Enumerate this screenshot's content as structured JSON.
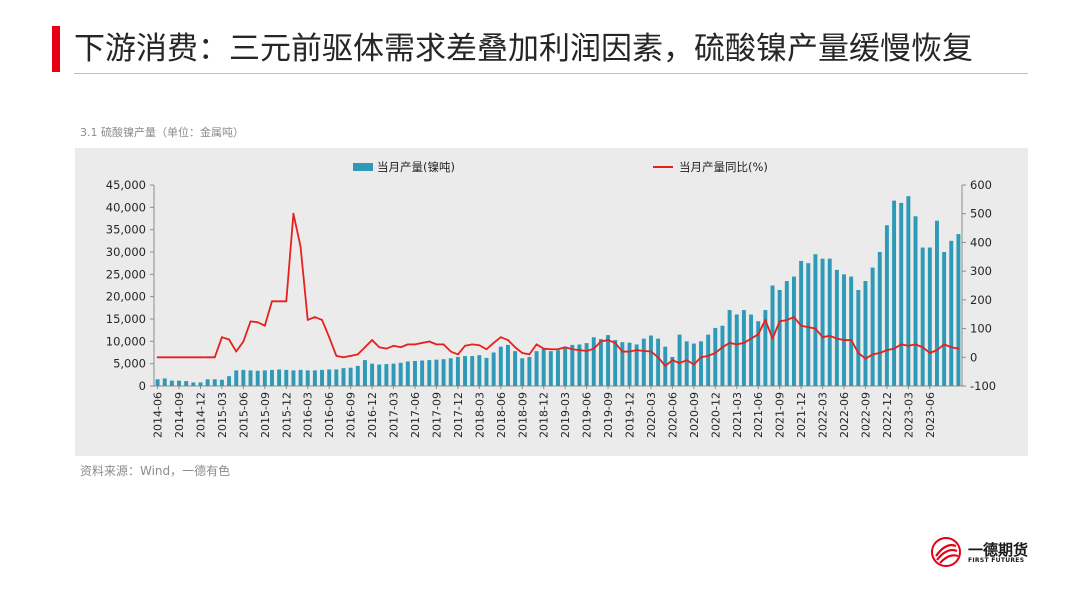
{
  "header": {
    "title": "下游消费：三元前驱体需求差叠加利润因素，硫酸镍产量缓慢恢复",
    "accent_color": "#e60012"
  },
  "chart_label": "3.1 硫酸镍产量（单位：金属吨）",
  "source": "资料来源：Wind，一德有色",
  "logo": {
    "cn": "一德期货",
    "en": "FIRST FUTURES",
    "icon": "first-futures-logo-icon"
  },
  "chart_data": {
    "type": "bar",
    "title": "",
    "legend_position": "top",
    "grid": false,
    "x_tick_labels": [
      "2014-06",
      "2014-09",
      "2014-12",
      "2015-03",
      "2015-06",
      "2015-09",
      "2015-12",
      "2016-03",
      "2016-06",
      "2016-09",
      "2016-12",
      "2017-03",
      "2017-06",
      "2017-09",
      "2017-12",
      "2018-03",
      "2018-06",
      "2018-09",
      "2018-12",
      "2019-03",
      "2019-06",
      "2019-09",
      "2019-12",
      "2020-03",
      "2020-06",
      "2020-09",
      "2020-12",
      "2021-03",
      "2021-06",
      "2021-09",
      "2021-12",
      "2022-03",
      "2022-06",
      "2022-09",
      "2022-12",
      "2023-03",
      "2023-06"
    ],
    "y_left": {
      "range": [
        0,
        45000
      ],
      "ticks": [
        "0",
        "5,000",
        "10,000",
        "15,000",
        "20,000",
        "25,000",
        "30,000",
        "35,000",
        "40,000",
        "45,000"
      ]
    },
    "y_right": {
      "range": [
        -100,
        600
      ],
      "ticks": [
        "-100",
        "0",
        "100",
        "200",
        "300",
        "400",
        "500",
        "600"
      ]
    },
    "series": [
      {
        "name": "当月产量(镍吨)",
        "type": "bar",
        "axis": "left",
        "color": "#2e9ab8",
        "values": [
          1500,
          1700,
          1200,
          1200,
          1100,
          800,
          800,
          1500,
          1500,
          1400,
          2200,
          3500,
          3600,
          3500,
          3400,
          3500,
          3600,
          3700,
          3600,
          3500,
          3600,
          3500,
          3500,
          3600,
          3700,
          3700,
          4000,
          4100,
          4500,
          5800,
          5000,
          4800,
          4900,
          5000,
          5200,
          5500,
          5600,
          5700,
          5800,
          5900,
          6000,
          6200,
          6500,
          6700,
          6700,
          6900,
          6300,
          7500,
          8800,
          9200,
          7800,
          6200,
          6500,
          7800,
          8300,
          7800,
          8000,
          8700,
          9200,
          9300,
          9600,
          10900,
          10500,
          11400,
          10300,
          9800,
          9700,
          9300,
          10600,
          11300,
          10600,
          8800,
          6500,
          11500,
          10000,
          9500,
          10000,
          11500,
          13000,
          13500,
          17000,
          16000,
          17000,
          16000,
          14500,
          17000,
          22500,
          21500,
          23500,
          24500,
          28000,
          27500,
          29500,
          28500,
          28500,
          26000,
          25000,
          24500,
          21500,
          23500,
          26500,
          30000,
          36000,
          41500,
          41000,
          42500,
          38000,
          31000,
          31000,
          37000,
          30000,
          32500,
          34000
        ]
      },
      {
        "name": "当月产量同比(%)",
        "type": "line",
        "axis": "right",
        "color": "#e6211d",
        "values": [
          0,
          0,
          0,
          0,
          0,
          0,
          0,
          0,
          0,
          70,
          62,
          20,
          55,
          125,
          122,
          110,
          195,
          195,
          195,
          500,
          385,
          130,
          140,
          130,
          70,
          5,
          0,
          5,
          10,
          35,
          60,
          35,
          30,
          40,
          35,
          45,
          45,
          50,
          55,
          45,
          45,
          20,
          10,
          40,
          45,
          42,
          28,
          50,
          70,
          60,
          35,
          15,
          10,
          45,
          30,
          28,
          28,
          35,
          28,
          25,
          22,
          30,
          55,
          60,
          50,
          20,
          20,
          25,
          22,
          20,
          0,
          -30,
          -10,
          -20,
          -10,
          -25,
          0,
          5,
          15,
          35,
          50,
          45,
          50,
          65,
          80,
          130,
          65,
          125,
          130,
          140,
          110,
          105,
          100,
          70,
          75,
          65,
          60,
          60,
          15,
          -5,
          10,
          15,
          25,
          30,
          45,
          40,
          45,
          35,
          15,
          25,
          45,
          35,
          30
        ]
      }
    ]
  }
}
